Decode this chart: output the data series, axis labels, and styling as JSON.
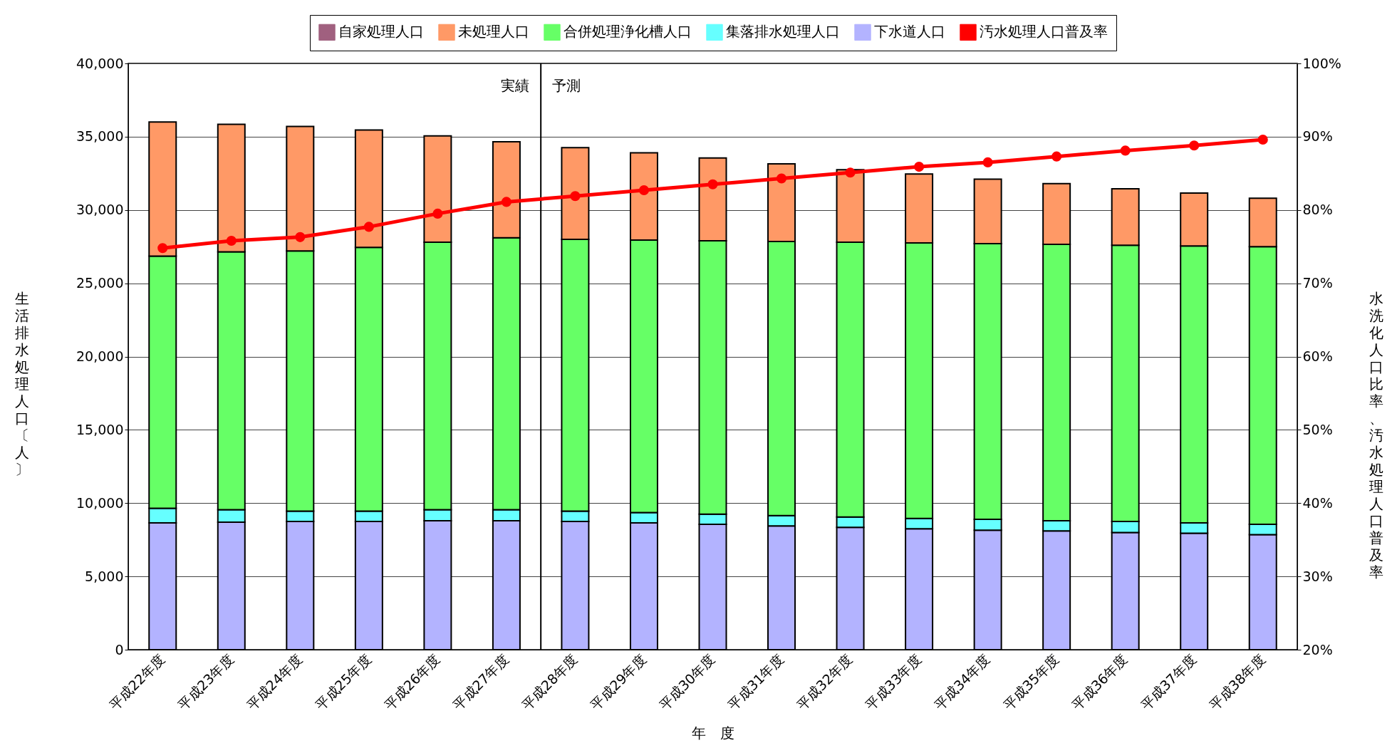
{
  "chart_data": {
    "type": "bar",
    "stacked": true,
    "categories": [
      "平成22年度",
      "平成23年度",
      "平成24年度",
      "平成25年度",
      "平成26年度",
      "平成27年度",
      "平成28年度",
      "平成29年度",
      "平成30年度",
      "平成31年度",
      "平成32年度",
      "平成33年度",
      "平成34年度",
      "平成35年度",
      "平成36年度",
      "平成37年度",
      "平成38年度"
    ],
    "xlabel": "年　度",
    "ylabel": "生活排水処理人口〔人〕",
    "y2label": "水洗化人口比率、汚水処理人口普及率",
    "series": [
      {
        "name": "下水道人口",
        "color": "#b3b3ff",
        "values": [
          8650,
          8700,
          8750,
          8750,
          8800,
          8800,
          8750,
          8650,
          8550,
          8450,
          8350,
          8250,
          8150,
          8100,
          8000,
          7950,
          7850
        ]
      },
      {
        "name": "集落排水処理人口",
        "color": "#66ffff",
        "values": [
          1000,
          850,
          700,
          700,
          750,
          750,
          700,
          700,
          700,
          700,
          700,
          700,
          750,
          700,
          750,
          700,
          700
        ]
      },
      {
        "name": "合併処理浄化槽人口",
        "color": "#66ff66",
        "values": [
          17200,
          17600,
          17750,
          18000,
          18250,
          18550,
          18550,
          18600,
          18650,
          18700,
          18750,
          18800,
          18800,
          18850,
          18850,
          18900,
          18950
        ]
      },
      {
        "name": "未処理人口",
        "color": "#ff9966",
        "values": [
          9150,
          8700,
          8500,
          8000,
          7250,
          6550,
          6250,
          5950,
          5650,
          5300,
          4950,
          4700,
          4400,
          4150,
          3850,
          3600,
          3300
        ]
      },
      {
        "name": "自家処理人口",
        "color": "#a0607f",
        "values": [
          0,
          0,
          0,
          0,
          0,
          0,
          0,
          0,
          0,
          0,
          0,
          0,
          0,
          0,
          0,
          0,
          0
        ]
      },
      {
        "name": "汚水処理人口普及率",
        "type": "line",
        "axis": "y2",
        "color": "#ff0000",
        "values": [
          74.8,
          75.8,
          76.3,
          77.7,
          79.5,
          81.1,
          81.9,
          82.7,
          83.5,
          84.3,
          85.1,
          85.9,
          86.5,
          87.3,
          88.1,
          88.8,
          89.6
        ]
      }
    ],
    "ylim": [
      0,
      40000
    ],
    "yticks": [
      {
        "value": 0,
        "label": "0"
      },
      {
        "value": 5000,
        "label": "5,000"
      },
      {
        "value": 10000,
        "label": "10,000"
      },
      {
        "value": 15000,
        "label": "15,000"
      },
      {
        "value": 20000,
        "label": "20,000"
      },
      {
        "value": 25000,
        "label": "25,000"
      },
      {
        "value": 30000,
        "label": "30,000"
      },
      {
        "value": 35000,
        "label": "35,000"
      },
      {
        "value": 40000,
        "label": "40,000"
      }
    ],
    "y2lim": [
      20,
      100
    ],
    "y2ticks": [
      {
        "value": 20,
        "label": "20%"
      },
      {
        "value": 30,
        "label": "30%"
      },
      {
        "value": 40,
        "label": "40%"
      },
      {
        "value": 50,
        "label": "50%"
      },
      {
        "value": 60,
        "label": "60%"
      },
      {
        "value": 70,
        "label": "70%"
      },
      {
        "value": 80,
        "label": "80%"
      },
      {
        "value": 90,
        "label": "90%"
      },
      {
        "value": 100,
        "label": "100%"
      }
    ],
    "ref_lines": [
      {
        "axis": "x",
        "value": "平成27年度",
        "color": "#000000"
      }
    ],
    "annotations": [
      "実績",
      "予測"
    ],
    "grid": "y",
    "legend": "top",
    "marker": "circle",
    "line_style": "solid"
  }
}
